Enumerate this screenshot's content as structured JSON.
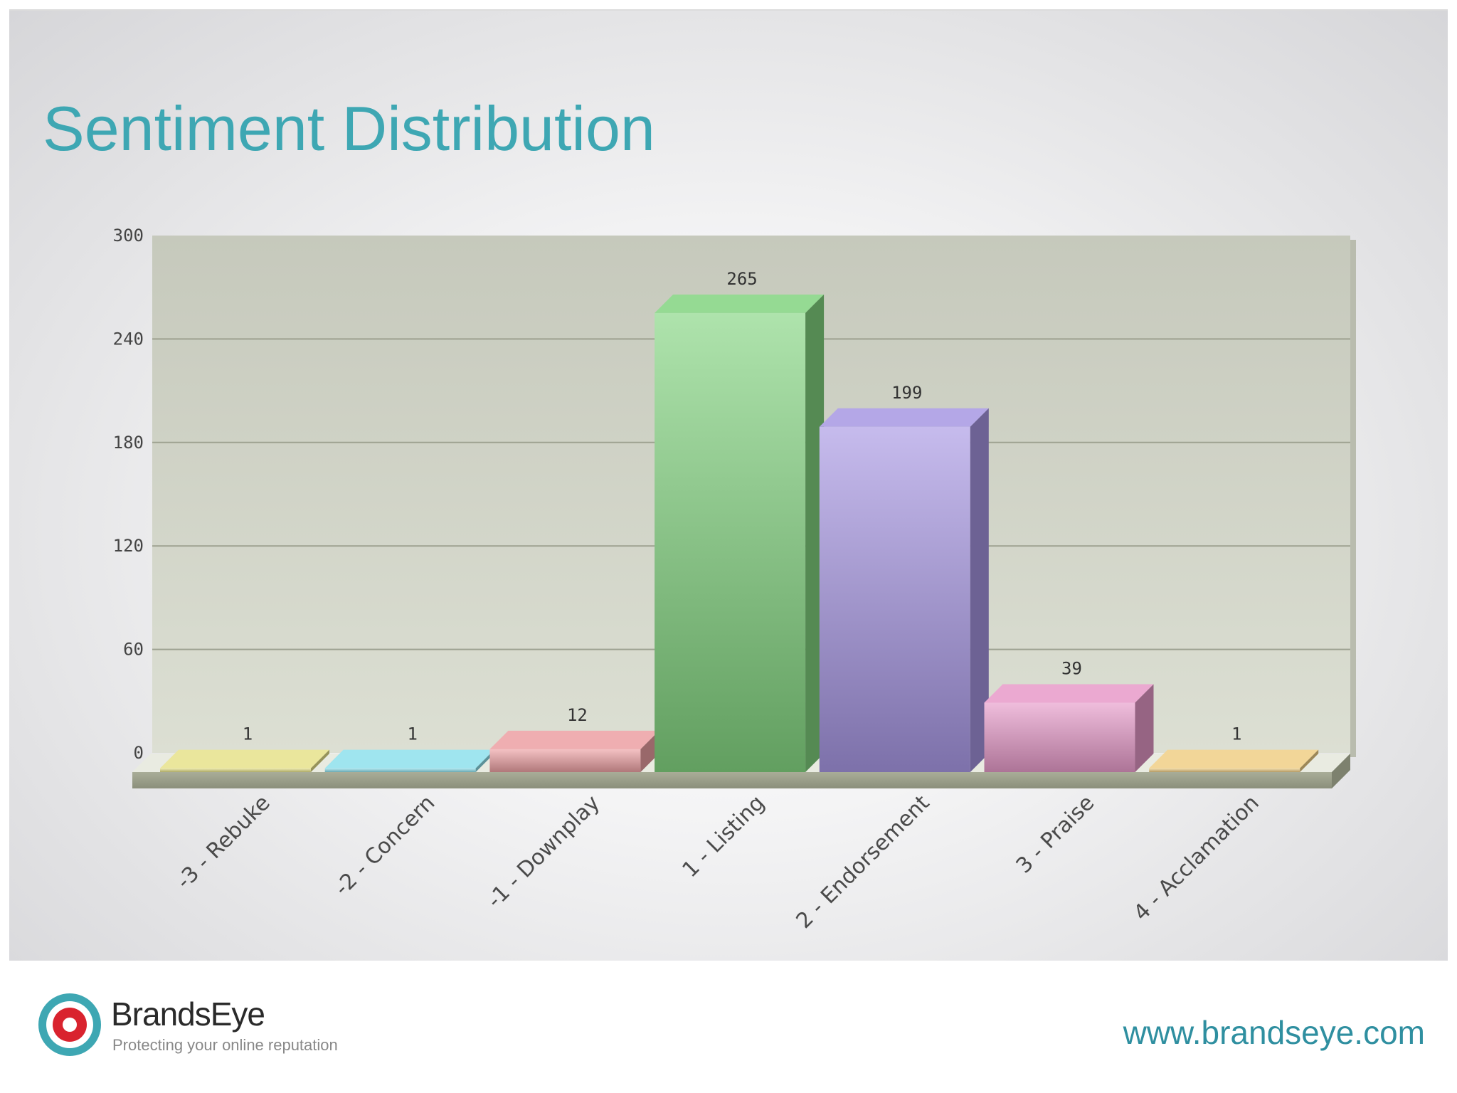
{
  "slide": {
    "title": "Sentiment Distribution"
  },
  "footer": {
    "brand_name": "BrandsEye",
    "tagline": "Protecting your online reputation",
    "website": "www.brandseye.com",
    "logo_icon": "target-logo-icon",
    "colors": {
      "ring": "#3ea7b3",
      "bullseye": "#d9232e"
    }
  },
  "chart_data": {
    "type": "bar",
    "style": "3d",
    "title": "Sentiment Distribution",
    "xlabel": "",
    "ylabel": "",
    "ylim": [
      0,
      300
    ],
    "yticks": [
      0,
      60,
      120,
      180,
      240,
      300
    ],
    "grid": true,
    "legend": "none",
    "categories": [
      "-3 - Rebuke",
      "-2 - Concern",
      "-1 - Downplay",
      "1 - Listing",
      "2 - Endorsement",
      "3 - Praise",
      "4 - Acclamation"
    ],
    "values": [
      1,
      1,
      12,
      265,
      199,
      39,
      1
    ],
    "colors": [
      "#e6e28a",
      "#8ee0ec",
      "#eca0a3",
      "#82d480",
      "#a797e3",
      "#e79ac9",
      "#f0cf86"
    ]
  }
}
